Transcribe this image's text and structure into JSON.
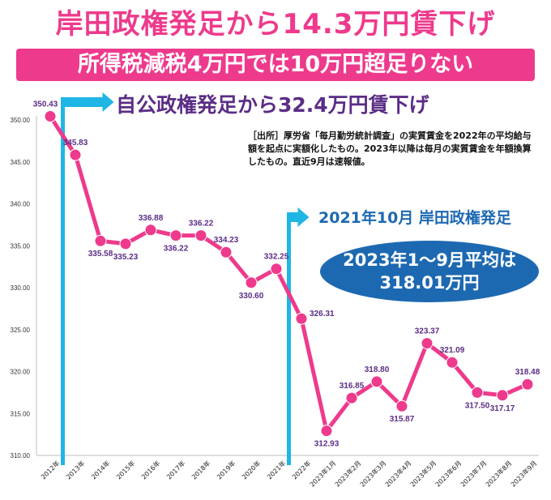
{
  "title": "岸田政権発足から14.3万円賃下げ",
  "banner": "所得税減税4万円では10万円超足りない",
  "annotation_abe": "自公政権発足から32.4万円賃下げ",
  "annotation_kishida": "2021年10月 岸田政権発足",
  "average_box": {
    "line1": "2023年1～9月平均は",
    "line2": "318.01万円"
  },
  "source_note": "［出所］厚労省「毎月勤労統計調査」の実質賃金を2022年の平均給与額を起点に実額化したもの。2023年以降は毎月の実質賃金を年額換算したもの。直近9月は速報値。",
  "colors": {
    "pink": "#ee3a8c",
    "purple": "#5b2d86",
    "blue": "#1d69b1",
    "cyan": "#1fb6e6"
  },
  "chart_data": {
    "type": "line",
    "title": "岸田政権発足から14.3万円賃下げ",
    "xlabel": "",
    "ylabel": "",
    "ylim": [
      310,
      350
    ],
    "yticks": [
      "310.00",
      "315.00",
      "320.00",
      "325.00",
      "330.00",
      "335.00",
      "340.00",
      "345.00",
      "350.00"
    ],
    "categories": [
      "2012年",
      "2013年",
      "2014年",
      "2015年",
      "2016年",
      "2017年",
      "2018年",
      "2019年",
      "2020年",
      "2021年",
      "2022年",
      "2023年1月",
      "2023年2月",
      "2023年3月",
      "2023年4月",
      "2023年5月",
      "2023年6月",
      "2023年7月",
      "2023年8月",
      "2023年9月"
    ],
    "values": [
      350.43,
      345.83,
      335.58,
      335.23,
      336.88,
      336.22,
      336.22,
      334.23,
      330.6,
      332.25,
      326.31,
      312.93,
      316.85,
      318.8,
      315.87,
      323.37,
      321.09,
      317.5,
      317.17,
      318.48
    ],
    "data_labels": [
      "350.43",
      "345.83",
      "335.58",
      "335.23",
      "336.88",
      "336.22",
      "336.22",
      "334.23",
      "330.60",
      "332.25",
      "326.31",
      "312.93",
      "316.85",
      "318.80",
      "315.87",
      "323.37",
      "321.09",
      "317.50",
      "317.17",
      "318.48"
    ],
    "label_pos": [
      "above",
      "above",
      "below",
      "below",
      "above",
      "below",
      "above",
      "above",
      "below",
      "above",
      "right",
      "below",
      "above",
      "above",
      "below",
      "above",
      "above",
      "below",
      "below",
      "above"
    ],
    "markers": [
      {
        "after_category": "2012年",
        "label": "自公政権発足"
      },
      {
        "after_category": "2021年",
        "label": "岸田政権発足"
      }
    ]
  }
}
